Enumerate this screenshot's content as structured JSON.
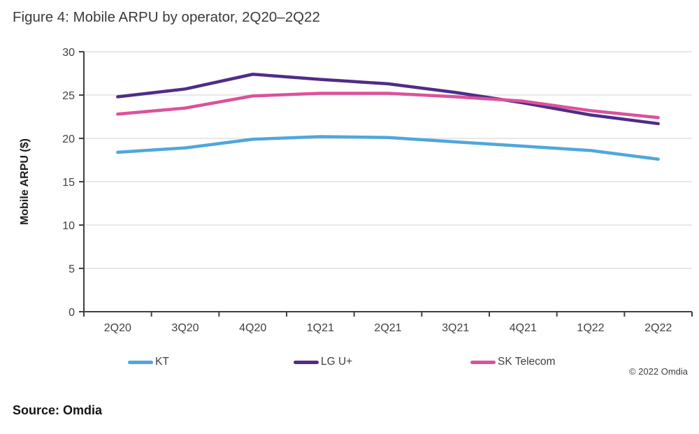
{
  "figure": {
    "title": "Figure 4: Mobile ARPU by operator, 2Q20–2Q22"
  },
  "chart_data": {
    "type": "line",
    "title": "Figure 4: Mobile ARPU by operator, 2Q20–2Q22",
    "categories": [
      "2Q20",
      "3Q20",
      "4Q20",
      "1Q21",
      "2Q21",
      "3Q21",
      "4Q21",
      "1Q22",
      "2Q22"
    ],
    "series": [
      {
        "name": "KT",
        "color": "#4FA7DC",
        "values": [
          18.4,
          18.9,
          19.9,
          20.2,
          20.1,
          19.6,
          19.1,
          18.6,
          17.6
        ]
      },
      {
        "name": "LG U+",
        "color": "#4F2D87",
        "values": [
          24.8,
          25.7,
          27.4,
          26.8,
          26.3,
          25.3,
          24.1,
          22.7,
          21.7
        ]
      },
      {
        "name": "SK Telecom",
        "color": "#DB529B",
        "values": [
          22.8,
          23.5,
          24.9,
          25.2,
          25.2,
          24.8,
          24.3,
          23.2,
          22.4
        ]
      }
    ],
    "xlabel": "",
    "ylabel": "Mobile ARPU ($)",
    "ylim": [
      0,
      30
    ],
    "yticks": [
      0,
      5,
      10,
      15,
      20,
      25,
      30
    ],
    "grid": "horizontal",
    "legend_position": "bottom",
    "grid_color": "#D9D9D9",
    "axis_color": "#404040",
    "copyright": "© 2022 Omdia"
  },
  "footer": {
    "source": "Source: Omdia"
  }
}
